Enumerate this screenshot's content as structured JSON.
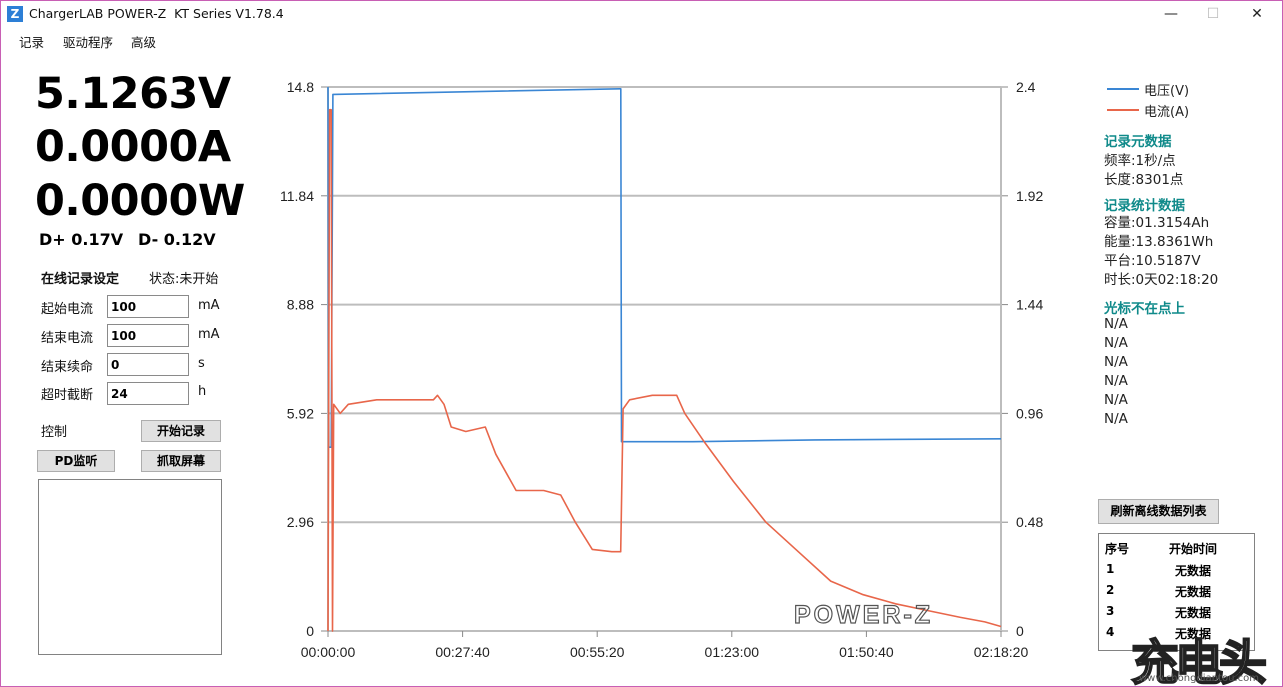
{
  "window": {
    "title": "ChargerLAB POWER-Z  KT Series V1.78.4",
    "logo_letter": "Z",
    "min_glyph": "—",
    "max_glyph": "☐",
    "close_glyph": "✕"
  },
  "menu": [
    "记录",
    "驱动程序",
    "高级"
  ],
  "readings": {
    "voltage": "5.1263V",
    "current": "0.0000A",
    "power": "0.0000W",
    "dplus": "D+ 0.17V",
    "dminus": "D- 0.12V"
  },
  "online_settings": {
    "title": "在线记录设定",
    "status": "状态:未开始",
    "fields": [
      {
        "label": "起始电流",
        "value": "100",
        "unit": "mA"
      },
      {
        "label": "结束电流",
        "value": "100",
        "unit": "mA"
      },
      {
        "label": "结束续命",
        "value": "0",
        "unit": "s"
      },
      {
        "label": "超时截断",
        "value": "24",
        "unit": "h"
      }
    ]
  },
  "control": {
    "label": "控制",
    "start_record": "开始记录",
    "pd_monitor": "PD监听",
    "screenshot": "抓取屏幕"
  },
  "legend": {
    "voltage": "电压(V)",
    "current": "电流(A)",
    "voltage_color": "#3a86d4",
    "current_color": "#e8664a"
  },
  "meta": {
    "title": "记录元数据",
    "rate": "频率:1秒/点",
    "length": "长度:8301点"
  },
  "stats": {
    "title": "记录统计数据",
    "capacity": "容量:01.3154Ah",
    "energy": "能量:13.8361Wh",
    "platform": "平台:10.5187V",
    "duration": "时长:0天02:18:20"
  },
  "cursor": {
    "title": "光标不在点上",
    "values": [
      "N/A",
      "N/A",
      "N/A",
      "N/A",
      "N/A",
      "N/A"
    ]
  },
  "offline": {
    "refresh_button": "刷新离线数据列表",
    "col_index": "序号",
    "col_start": "开始时间",
    "rows": [
      {
        "index": "1",
        "start": "无数据"
      },
      {
        "index": "2",
        "start": "无数据"
      },
      {
        "index": "3",
        "start": "无数据"
      },
      {
        "index": "4",
        "start": "无数据"
      }
    ]
  },
  "chart_brand": "POWER-Z",
  "watermark": {
    "text": "充电头",
    "sub": "www.chongdiantou.com"
  },
  "chart_data": {
    "type": "line",
    "x_tick_labels": [
      "00:00:00",
      "00:27:40",
      "00:55:20",
      "01:23:00",
      "01:50:40",
      "02:18:20"
    ],
    "x_range_seconds": [
      0,
      8300
    ],
    "y_left_ticks": [
      "0",
      "2.96",
      "5.92",
      "8.88",
      "11.84",
      "14.8"
    ],
    "y_left_range": [
      0,
      14.8
    ],
    "y_right_ticks": [
      "0",
      "0.48",
      "0.96",
      "1.44",
      "1.92",
      "2.4"
    ],
    "y_right_range": [
      0,
      2.4
    ],
    "grid": true,
    "legend_position": "top-right",
    "series": [
      {
        "name": "电压(V)",
        "axis": "left",
        "color": "#3a86d4",
        "points": [
          [
            0,
            14.8
          ],
          [
            10,
            5.0
          ],
          [
            40,
            5.0
          ],
          [
            60,
            14.6
          ],
          [
            3600,
            14.75
          ],
          [
            3611,
            14.75
          ],
          [
            3620,
            5.15
          ],
          [
            4500,
            5.15
          ],
          [
            6000,
            5.2
          ],
          [
            8300,
            5.23
          ]
        ]
      },
      {
        "name": "电流(A)",
        "axis": "right",
        "color": "#e8664a",
        "points": [
          [
            0,
            0.0
          ],
          [
            20,
            2.3
          ],
          [
            40,
            2.3
          ],
          [
            55,
            0.0
          ],
          [
            70,
            1.0
          ],
          [
            150,
            0.96
          ],
          [
            250,
            1.0
          ],
          [
            600,
            1.02
          ],
          [
            1000,
            1.02
          ],
          [
            1300,
            1.02
          ],
          [
            1350,
            1.04
          ],
          [
            1430,
            1.0
          ],
          [
            1520,
            0.9
          ],
          [
            1700,
            0.88
          ],
          [
            1940,
            0.9
          ],
          [
            2070,
            0.78
          ],
          [
            2320,
            0.62
          ],
          [
            2660,
            0.62
          ],
          [
            2870,
            0.6
          ],
          [
            3050,
            0.48
          ],
          [
            3260,
            0.36
          ],
          [
            3500,
            0.35
          ],
          [
            3610,
            0.35
          ],
          [
            3640,
            0.98
          ],
          [
            3720,
            1.02
          ],
          [
            4000,
            1.04
          ],
          [
            4300,
            1.04
          ],
          [
            4400,
            0.96
          ],
          [
            4650,
            0.83
          ],
          [
            5000,
            0.66
          ],
          [
            5400,
            0.48
          ],
          [
            5800,
            0.35
          ],
          [
            6200,
            0.22
          ],
          [
            6600,
            0.16
          ],
          [
            7000,
            0.12
          ],
          [
            7400,
            0.09
          ],
          [
            7800,
            0.06
          ],
          [
            8100,
            0.04
          ],
          [
            8300,
            0.02
          ]
        ]
      }
    ]
  }
}
